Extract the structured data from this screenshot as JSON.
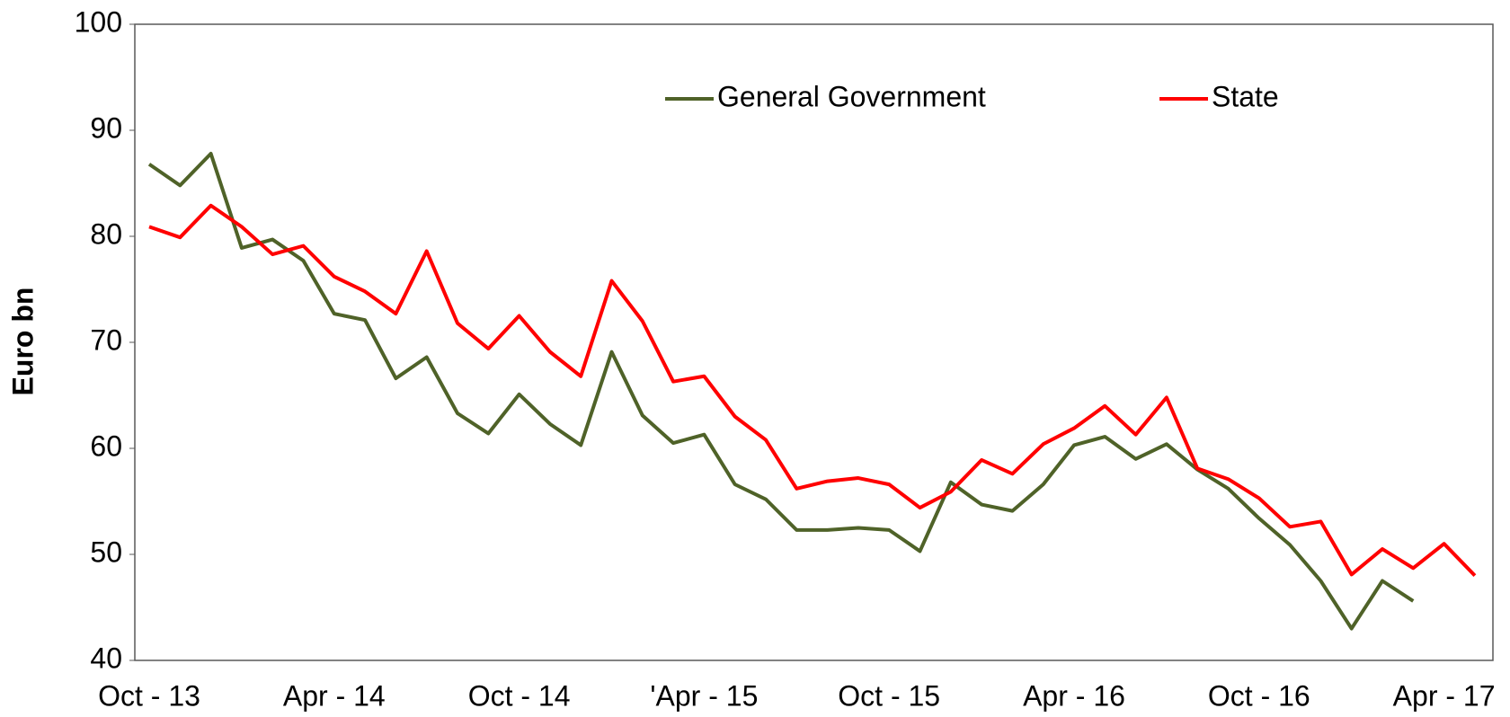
{
  "chart_data": {
    "type": "line",
    "y_label": "Euro bn",
    "categories": [
      "Oct - 13",
      null,
      null,
      null,
      null,
      null,
      "Apr - 14",
      null,
      null,
      null,
      null,
      null,
      "Oct - 14",
      null,
      null,
      null,
      null,
      null,
      "'Apr - 15",
      null,
      null,
      null,
      null,
      null,
      "Oct - 15",
      null,
      null,
      null,
      null,
      null,
      "Apr - 16",
      null,
      null,
      null,
      null,
      null,
      "Oct - 16",
      null,
      null,
      null,
      null,
      null,
      "Apr - 17",
      null
    ],
    "series": [
      {
        "name": "General Government",
        "color": "#4f6228",
        "values": [
          86.8,
          84.8,
          87.8,
          78.9,
          79.7,
          77.7,
          72.7,
          72.1,
          66.6,
          68.6,
          63.3,
          61.4,
          65.1,
          62.3,
          60.3,
          69.1,
          63.1,
          60.5,
          61.3,
          56.6,
          55.2,
          52.3,
          52.3,
          52.5,
          52.3,
          50.3,
          56.8,
          54.7,
          54.1,
          56.6,
          60.3,
          61.1,
          59.0,
          60.4,
          58.0,
          56.2,
          53.4,
          50.9,
          47.5,
          43.0,
          47.5,
          45.6,
          null,
          null
        ]
      },
      {
        "name": "State",
        "color": "#ff0000",
        "values": [
          80.9,
          79.9,
          82.9,
          80.9,
          78.3,
          79.1,
          76.2,
          74.8,
          72.7,
          78.6,
          71.8,
          69.4,
          72.5,
          69.1,
          66.8,
          75.8,
          72.0,
          66.3,
          66.8,
          63.0,
          60.8,
          56.2,
          56.9,
          57.2,
          56.6,
          54.4,
          55.9,
          58.9,
          57.6,
          60.4,
          61.9,
          64.0,
          61.3,
          64.8,
          58.1,
          57.1,
          55.3,
          52.6,
          53.1,
          48.1,
          50.5,
          48.7,
          51.0,
          48.0
        ]
      }
    ],
    "ylim": [
      40,
      100
    ],
    "yticks": [
      40,
      50,
      60,
      70,
      80,
      90,
      100
    ],
    "grid": false,
    "legend": "top"
  }
}
